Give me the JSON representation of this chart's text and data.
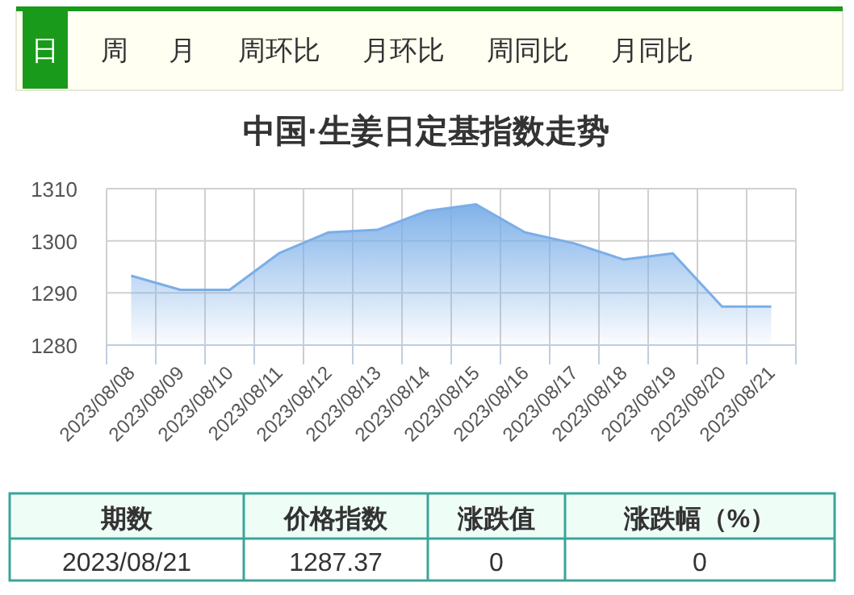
{
  "chart_data": [
    {
      "type": "other",
      "annotations": [
        "日",
        "周",
        "月",
        "周环比",
        "月环比",
        "周同比",
        "月同比"
      ]
    },
    {
      "type": "area",
      "title": "中国·生姜日定基指数走势",
      "categories": [
        "2023/08/08",
        "2023/08/09",
        "2023/08/10",
        "2023/08/11",
        "2023/08/12",
        "2023/08/13",
        "2023/08/14",
        "2023/08/15",
        "2023/08/16",
        "2023/08/17",
        "2023/08/18",
        "2023/08/19",
        "2023/08/20",
        "2023/08/21"
      ],
      "series": [
        {
          "color": "#7aaee8",
          "values": [
            1293.3,
            1290.6,
            1290.6,
            1297.6,
            1301.6,
            1302.1,
            1305.7,
            1307.0,
            1301.6,
            1299.5,
            1296.4,
            1297.6,
            1287.4,
            1287.37
          ]
        }
      ],
      "ylim": [
        1280,
        1310
      ],
      "yticks": [
        1280,
        1290,
        1300,
        1310
      ],
      "grid": true
    },
    {
      "type": "other",
      "annotations": [
        "期数",
        "价格指数",
        "涨跌值",
        "涨跌幅（%）",
        "2023/08/21",
        "1287.37",
        "0",
        "0"
      ]
    }
  ]
}
